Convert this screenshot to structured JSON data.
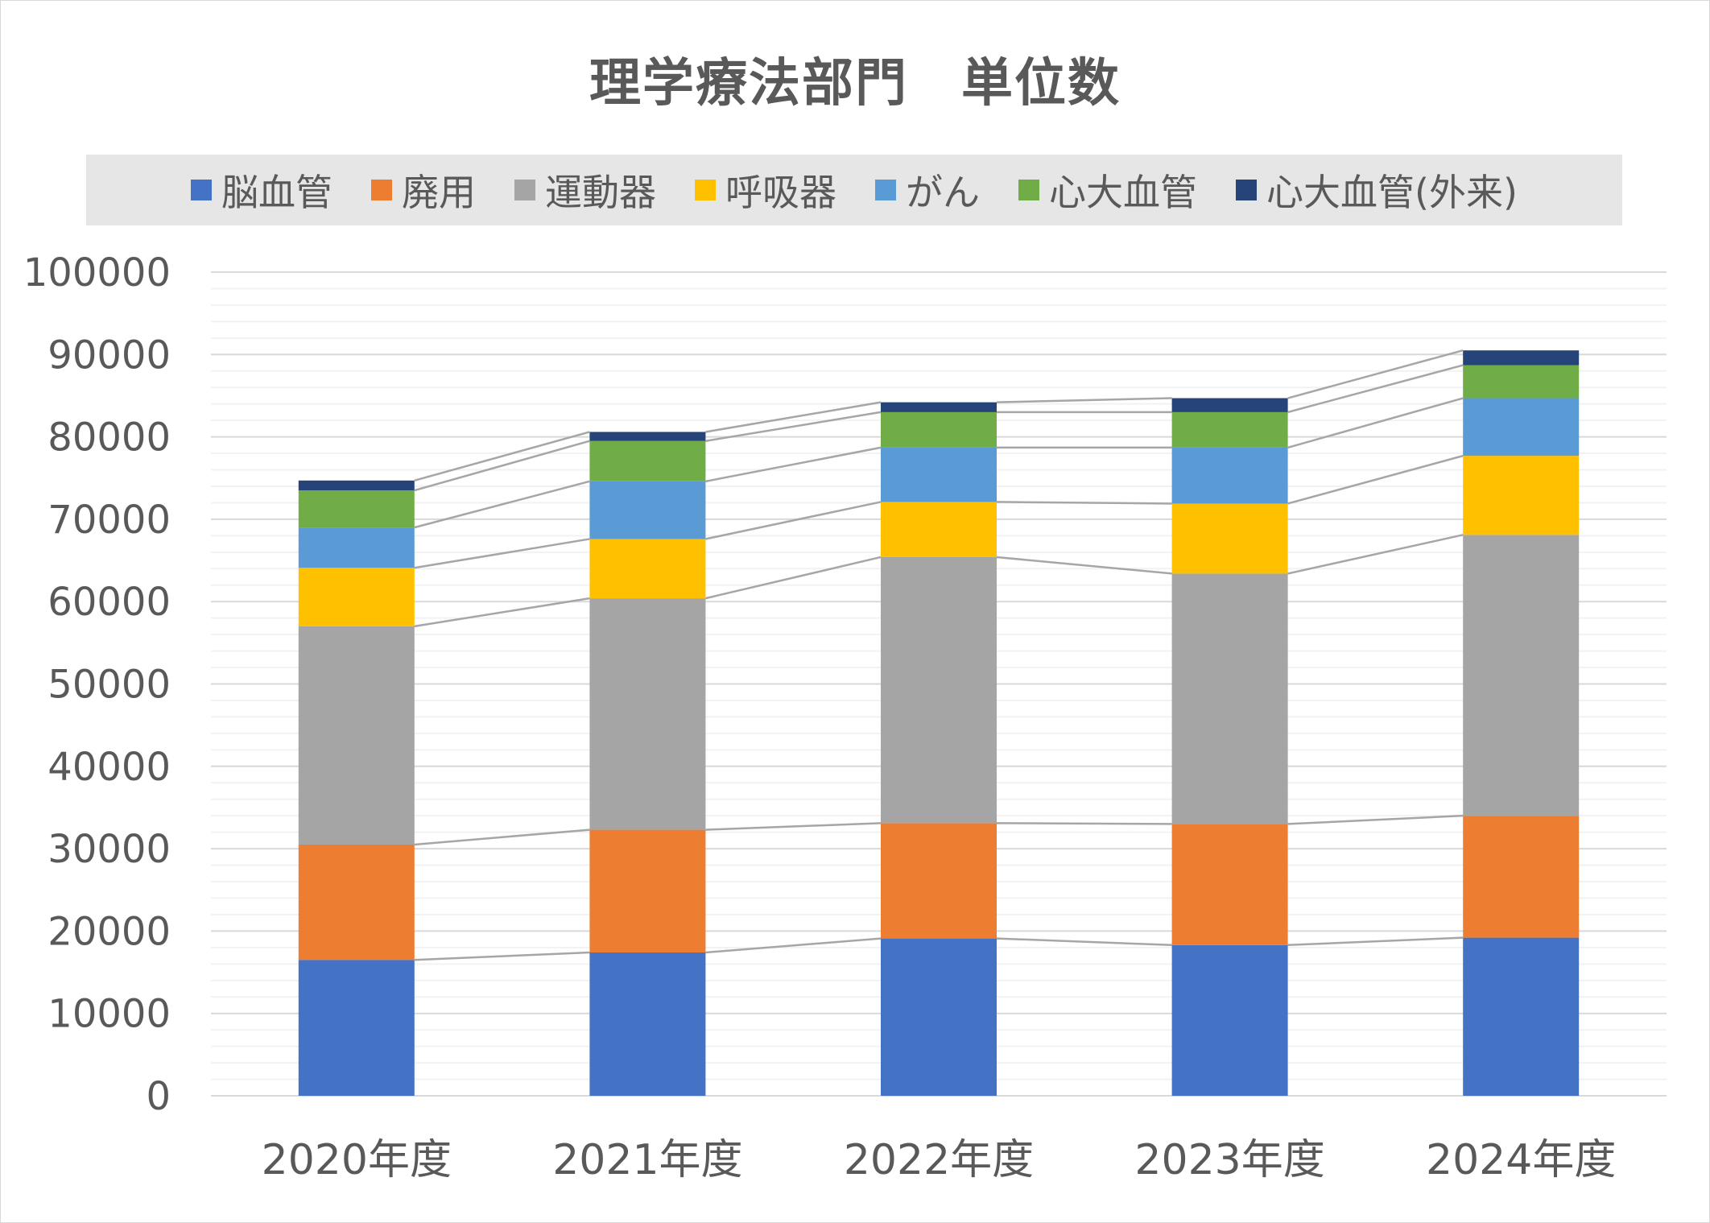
{
  "chart_data": {
    "type": "bar",
    "stacked": true,
    "title": "理学療法部門　単位数",
    "categories": [
      "2020年度",
      "2021年度",
      "2022年度",
      "2023年度",
      "2024年度"
    ],
    "series": [
      {
        "name": "脳血管",
        "color": "#4472c4",
        "values": [
          16500,
          17400,
          19100,
          18300,
          19200
        ]
      },
      {
        "name": "廃用",
        "color": "#ed7d31",
        "values": [
          14000,
          14900,
          14000,
          14700,
          14800
        ]
      },
      {
        "name": "運動器",
        "color": "#a5a5a5",
        "values": [
          26500,
          28100,
          32300,
          30400,
          34100
        ]
      },
      {
        "name": "呼吸器",
        "color": "#ffc000",
        "values": [
          7100,
          7200,
          6700,
          8500,
          9600
        ]
      },
      {
        "name": "がん",
        "color": "#5b9bd5",
        "values": [
          4900,
          7000,
          6600,
          6800,
          7000
        ]
      },
      {
        "name": "心大血管",
        "color": "#70ad47",
        "values": [
          4500,
          4900,
          4300,
          4300,
          4000
        ]
      },
      {
        "name": "心大血管(外来)",
        "color": "#264478",
        "values": [
          1200,
          1100,
          1200,
          1700,
          1800
        ]
      }
    ],
    "ylim": [
      0,
      100000
    ],
    "yticks": [
      "0",
      "10000",
      "20000",
      "30000",
      "40000",
      "50000",
      "60000",
      "70000",
      "80000",
      "90000",
      "100000"
    ],
    "xlabel": "",
    "ylabel": "",
    "legend": "top",
    "grid": true,
    "series_lines": true
  }
}
